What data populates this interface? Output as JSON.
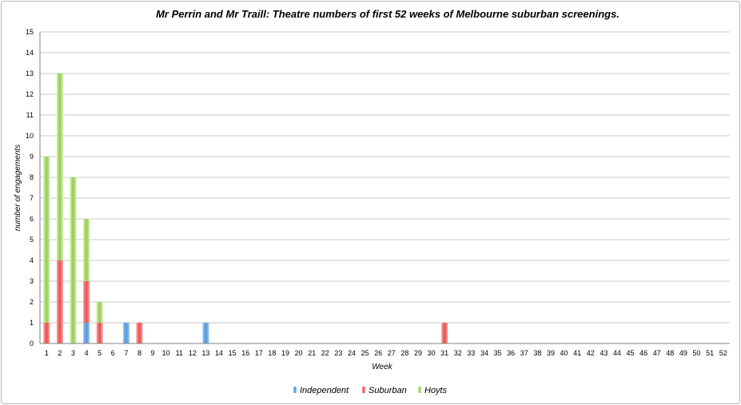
{
  "chart_data": {
    "type": "bar",
    "stacked": true,
    "title": "Mr Perrin and Mr Traill: Theatre numbers of first 52 weeks of Melbourne suburban screenings.",
    "xlabel": "Week",
    "ylabel": "number of engagements",
    "ylim": [
      0,
      15
    ],
    "yticks": [
      0,
      1,
      2,
      3,
      4,
      5,
      6,
      7,
      8,
      9,
      10,
      11,
      12,
      13,
      14,
      15
    ],
    "grid": true,
    "legend_position": "bottom",
    "categories": [
      "1",
      "2",
      "3",
      "4",
      "5",
      "6",
      "7",
      "8",
      "9",
      "10",
      "11",
      "12",
      "13",
      "14",
      "15",
      "16",
      "17",
      "18",
      "19",
      "20",
      "21",
      "22",
      "23",
      "24",
      "25",
      "26",
      "27",
      "28",
      "29",
      "30",
      "31",
      "32",
      "33",
      "34",
      "35",
      "36",
      "37",
      "38",
      "39",
      "40",
      "41",
      "42",
      "43",
      "44",
      "45",
      "46",
      "47",
      "48",
      "49",
      "50",
      "51",
      "52"
    ],
    "series": [
      {
        "name": "Independent",
        "color": "#5b9bd5",
        "values": [
          0,
          0,
          0,
          1,
          0,
          0,
          1,
          0,
          0,
          0,
          0,
          0,
          1,
          0,
          0,
          0,
          0,
          0,
          0,
          0,
          0,
          0,
          0,
          0,
          0,
          0,
          0,
          0,
          0,
          0,
          0,
          0,
          0,
          0,
          0,
          0,
          0,
          0,
          0,
          0,
          0,
          0,
          0,
          0,
          0,
          0,
          0,
          0,
          0,
          0,
          0,
          0
        ]
      },
      {
        "name": "Suburban",
        "color": "#ef5350",
        "values": [
          1,
          4,
          0,
          2,
          1,
          0,
          0,
          1,
          0,
          0,
          0,
          0,
          0,
          0,
          0,
          0,
          0,
          0,
          0,
          0,
          0,
          0,
          0,
          0,
          0,
          0,
          0,
          0,
          0,
          0,
          1,
          0,
          0,
          0,
          0,
          0,
          0,
          0,
          0,
          0,
          0,
          0,
          0,
          0,
          0,
          0,
          0,
          0,
          0,
          0,
          0,
          0
        ]
      },
      {
        "name": "Hoyts",
        "color": "#8bc34a",
        "values": [
          8,
          9,
          8,
          3,
          1,
          0,
          0,
          0,
          0,
          0,
          0,
          0,
          0,
          0,
          0,
          0,
          0,
          0,
          0,
          0,
          0,
          0,
          0,
          0,
          0,
          0,
          0,
          0,
          0,
          0,
          0,
          0,
          0,
          0,
          0,
          0,
          0,
          0,
          0,
          0,
          0,
          0,
          0,
          0,
          0,
          0,
          0,
          0,
          0,
          0,
          0,
          0
        ]
      }
    ]
  }
}
